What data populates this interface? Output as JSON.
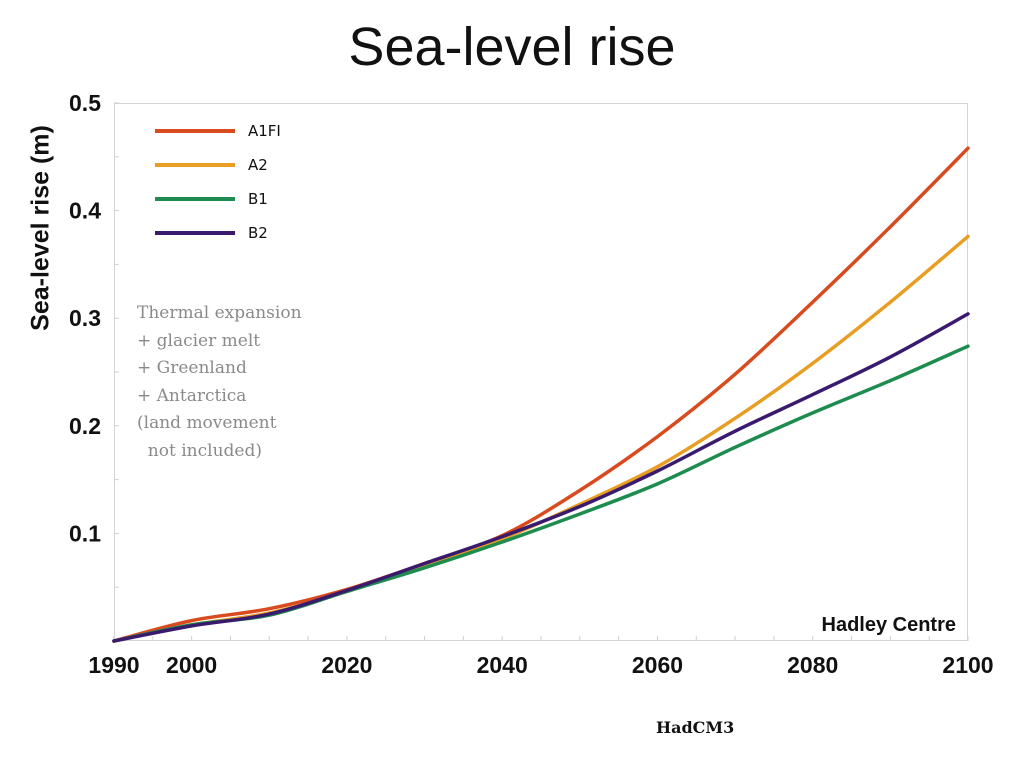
{
  "chart_data": {
    "type": "line",
    "title": "Sea-level rise",
    "ylabel": "Sea-level rise (m)",
    "xlabel": "",
    "xlim": [
      1990,
      2100
    ],
    "ylim": [
      0,
      0.5
    ],
    "x_ticks": [
      1990,
      2000,
      2020,
      2040,
      2060,
      2080,
      2100
    ],
    "y_ticks": [
      0.1,
      0.2,
      0.3,
      0.4,
      0.5
    ],
    "grid": false,
    "legend_position": "top-left",
    "x": [
      1990,
      2000,
      2010,
      2020,
      2030,
      2040,
      2050,
      2060,
      2070,
      2080,
      2090,
      2100
    ],
    "series": [
      {
        "name": "A1FI",
        "color": "#d94a1e",
        "values": [
          0.0,
          0.019,
          0.03,
          0.048,
          0.072,
          0.098,
          0.14,
          0.19,
          0.248,
          0.315,
          0.385,
          0.458
        ]
      },
      {
        "name": "A2",
        "color": "#e89e22",
        "values": [
          0.0,
          0.015,
          0.026,
          0.046,
          0.07,
          0.095,
          0.127,
          0.162,
          0.207,
          0.258,
          0.315,
          0.376
        ]
      },
      {
        "name": "B1",
        "color": "#1e8c4e",
        "values": [
          0.0,
          0.015,
          0.024,
          0.046,
          0.068,
          0.092,
          0.118,
          0.146,
          0.18,
          0.212,
          0.242,
          0.274
        ]
      },
      {
        "name": "B2",
        "color": "#3a1a6e",
        "values": [
          0.0,
          0.014,
          0.025,
          0.047,
          0.072,
          0.097,
          0.125,
          0.158,
          0.195,
          0.229,
          0.264,
          0.304
        ]
      }
    ]
  },
  "annotation": {
    "lines": [
      "Thermal expansion",
      "+ glacier melt",
      "+ Greenland",
      "+ Antarctica",
      "(land movement",
      "  not included)"
    ]
  },
  "credit": "Hadley Centre",
  "footer": "HadCM3"
}
